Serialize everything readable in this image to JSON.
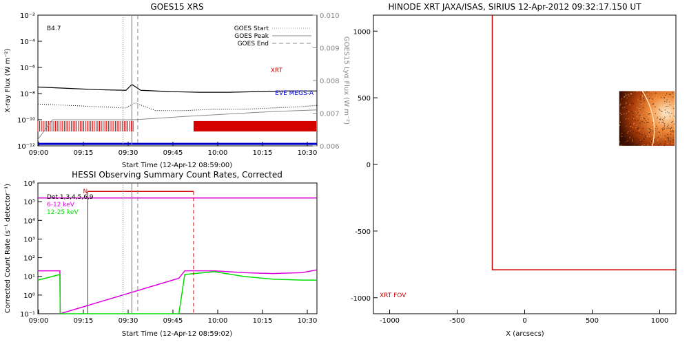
{
  "chart_data": [
    {
      "type": "line",
      "title": "GOES15 XRS",
      "xlabel": "Start Time (12-Apr-12 08:59:00)",
      "ylabel": "X-ray Flux (W m⁻²)",
      "y2label": "GOES15 Lyα Flux (W m⁻²)",
      "x_ticks": [
        "09:00",
        "09:15",
        "09:30",
        "09:45",
        "10:00",
        "10:15",
        "10:30"
      ],
      "x_range_min": [
        0,
        95
      ],
      "y_ticks": [
        "10⁻²",
        "10⁻⁴",
        "10⁻⁶",
        "10⁻⁸",
        "10⁻¹⁰",
        "10⁻¹²"
      ],
      "y_log_range": [
        -12,
        -2
      ],
      "y2_ticks": [
        "0.010",
        "0.009",
        "0.008",
        "0.007",
        "0.006"
      ],
      "y2_range": [
        0.006,
        0.01
      ],
      "class_label": "B4.7",
      "legend": {
        "start": "GOES Start",
        "peak": "GOES Peak",
        "end": "GOES End"
      },
      "series_labels": {
        "xrt": "XRT",
        "eve": "EVE MEGS-A"
      },
      "colors": {
        "xrt": "#d40000",
        "eve": "#0000cc",
        "lya": "#888888"
      },
      "markers_min": {
        "start": 29,
        "peak": 32,
        "end": 34
      },
      "series": [
        {
          "name": "XRT",
          "x": [
            0,
            10,
            20,
            30,
            32,
            35,
            45,
            55,
            65,
            75,
            85,
            95
          ],
          "y": [
            -7.5,
            -7.6,
            -7.7,
            -7.75,
            -7.3,
            -7.75,
            -7.85,
            -7.9,
            -7.9,
            -7.85,
            -7.8,
            -7.8
          ]
        },
        {
          "name": "EVE MEGS-A",
          "x": [
            0,
            10,
            20,
            30,
            33,
            40,
            50,
            60,
            70,
            80,
            90,
            95
          ],
          "y": [
            -8.8,
            -8.9,
            -9.0,
            -9.1,
            -8.7,
            -9.3,
            -9.3,
            -9.2,
            -9.2,
            -9.1,
            -9.0,
            -8.9
          ]
        },
        {
          "name": "lya",
          "x": [
            0,
            5,
            20,
            33,
            50,
            60,
            70,
            80,
            95
          ],
          "y": [
            0.0062,
            0.0068,
            0.0068,
            0.0068,
            0.0069,
            0.00695,
            0.007,
            0.00705,
            0.0071
          ]
        },
        {
          "name": "low",
          "x": [
            0,
            95
          ],
          "y": [
            -11.85,
            -11.85
          ]
        }
      ],
      "xrt_coverage_min": [
        [
          0,
          33
        ],
        [
          53,
          95
        ]
      ]
    },
    {
      "type": "line",
      "title": "HESSI Observing Summary Count Rates, Corrected",
      "xlabel": "Start Time (12-Apr-12 08:59:02)",
      "ylabel": "Corrected Count Rate (s⁻¹ detector⁻¹)",
      "x_ticks": [
        "09:00",
        "09:15",
        "09:30",
        "09:45",
        "10:00",
        "10:15",
        "10:30"
      ],
      "x_range_min": [
        0,
        95
      ],
      "y_ticks": [
        "10⁶",
        "10⁵",
        "10⁴",
        "10³",
        "10²",
        "10¹",
        "10⁰",
        "10⁻¹"
      ],
      "y_log_range": [
        -1,
        6
      ],
      "legend": [
        "Det 1,3,4,5,6,9",
        "6-12 keV",
        "12-25 keV"
      ],
      "night_label": "N",
      "colors": {
        "det": "#000000",
        "lo": "#dd00dd",
        "hi": "#00dd00",
        "night": "#cc0000"
      },
      "markers_min": {
        "start": 29,
        "peak": 32,
        "end": 34
      },
      "night_min": [
        17,
        53
      ],
      "series": [
        {
          "name": "6-12 keV",
          "x": [
            0,
            7.5,
            7.6,
            48,
            50,
            60,
            70,
            80,
            90,
            95
          ],
          "y": [
            1.3,
            1.3,
            -1,
            0.9,
            1.3,
            1.3,
            1.2,
            1.15,
            1.2,
            1.35
          ]
        },
        {
          "name": "12-25 keV",
          "x": [
            0,
            7.5,
            7.6,
            48,
            50,
            60,
            70,
            80,
            90,
            95
          ],
          "y": [
            0.8,
            1.1,
            -1,
            -1,
            1.1,
            1.25,
            1.0,
            0.85,
            0.8,
            0.8
          ]
        },
        {
          "name": "6-12 keV-offset",
          "x": [
            -2,
            0,
            88,
            95
          ],
          "y": [
            5.2,
            5.2,
            5.2,
            5.2
          ]
        }
      ]
    },
    {
      "type": "scatter",
      "title": "HINODE XRT JAXA/ISAS, SIRIUS 12-Apr-2012 09:32:17.150 UT",
      "xlabel": "X (arcsecs)",
      "ylabel": "",
      "x_ticks": [
        -1000,
        -500,
        0,
        500,
        1000
      ],
      "y_ticks": [
        1000,
        500,
        0,
        -500,
        -1000
      ],
      "xlim": [
        -1120,
        1120
      ],
      "ylim": [
        -1120,
        1120
      ],
      "fov_label": "XRT FOV",
      "colors": {
        "fov": "#d40000",
        "image": "#e06010"
      },
      "fov_box": {
        "x": [
          -240,
          1120
        ],
        "y": [
          -790,
          1120
        ]
      },
      "image_box": {
        "x": [
          700,
          1110
        ],
        "y": [
          140,
          550
        ]
      }
    }
  ]
}
